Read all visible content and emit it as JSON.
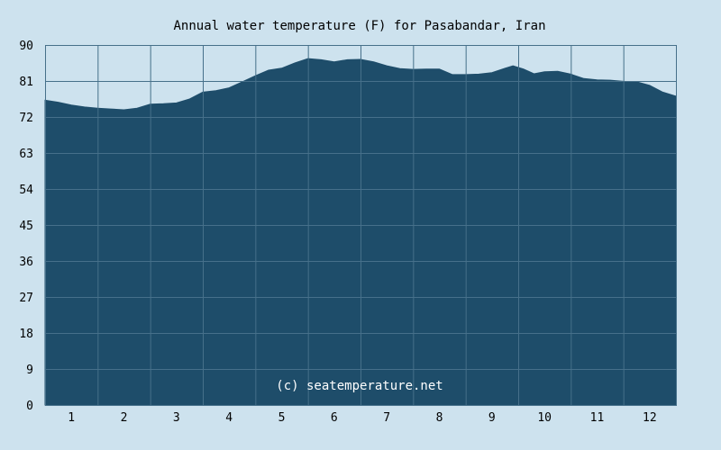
{
  "chart_data": {
    "type": "area",
    "title": "Annual water temperature (F) for Pasabandar, Iran",
    "xlabel": "",
    "ylabel": "",
    "x_ticks": [
      "1",
      "2",
      "3",
      "4",
      "5",
      "6",
      "7",
      "8",
      "9",
      "10",
      "11",
      "12"
    ],
    "y_ticks": [
      "0",
      "9",
      "18",
      "27",
      "36",
      "45",
      "54",
      "63",
      "72",
      "81",
      "90"
    ],
    "xlim": [
      0.5,
      12.5
    ],
    "ylim": [
      0,
      90
    ],
    "grid": true,
    "legend": "none",
    "x": [
      0.5,
      0.75,
      1.0,
      1.25,
      1.5,
      1.75,
      2.0,
      2.25,
      2.5,
      2.75,
      3.0,
      3.25,
      3.5,
      3.75,
      4.0,
      4.25,
      4.5,
      4.75,
      5.0,
      5.25,
      5.5,
      5.75,
      6.0,
      6.25,
      6.5,
      6.75,
      7.0,
      7.25,
      7.5,
      7.75,
      8.0,
      8.25,
      8.5,
      8.75,
      9.0,
      9.25,
      9.4,
      9.6,
      9.8,
      10.0,
      10.25,
      10.5,
      10.75,
      11.0,
      11.25,
      11.5,
      11.75,
      12.0,
      12.25,
      12.5
    ],
    "values": [
      76.2,
      75.7,
      75.0,
      74.5,
      74.2,
      74.0,
      73.8,
      74.2,
      75.2,
      75.3,
      75.5,
      76.5,
      78.2,
      78.6,
      79.3,
      80.8,
      82.3,
      83.7,
      84.2,
      85.5,
      86.6,
      86.3,
      85.8,
      86.3,
      86.4,
      85.8,
      84.8,
      84.1,
      83.9,
      84.0,
      84.0,
      82.6,
      82.6,
      82.7,
      83.1,
      84.2,
      84.8,
      84.0,
      82.8,
      83.3,
      83.4,
      82.7,
      81.6,
      81.3,
      81.2,
      80.9,
      80.8,
      79.9,
      78.2,
      77.2
    ],
    "colors": {
      "background": "#cde2ee",
      "plot_background": "#cde2ee",
      "area_fill": "#1e4d6a",
      "grid": "#46708a",
      "text": "#000000",
      "watermark": "#ffffff"
    },
    "watermark": "(c) seatemperature.net"
  }
}
